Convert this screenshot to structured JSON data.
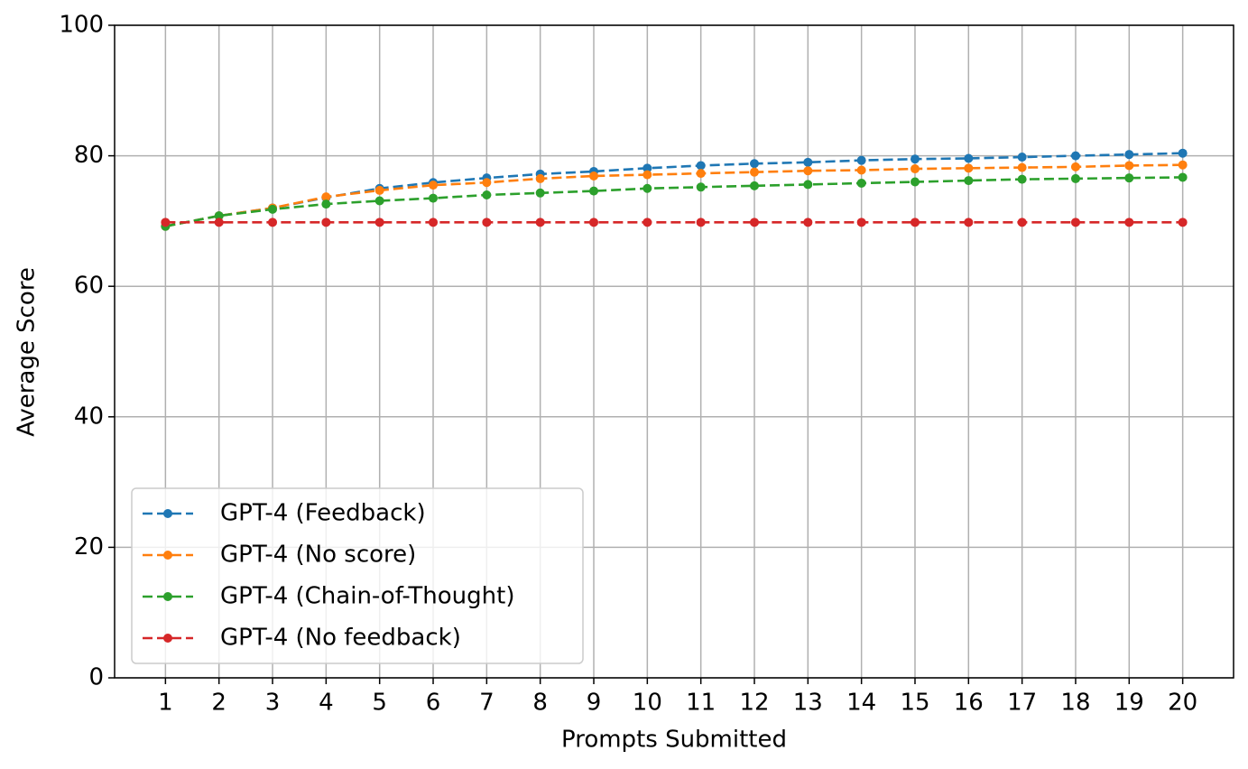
{
  "chart_data": {
    "type": "line",
    "xlabel": "Prompts Submitted",
    "ylabel": "Average Score",
    "x": [
      1,
      2,
      3,
      4,
      5,
      6,
      7,
      8,
      9,
      10,
      11,
      12,
      13,
      14,
      15,
      16,
      17,
      18,
      19,
      20
    ],
    "series": [
      {
        "name": "GPT-4 (Feedback)",
        "color": "#1f77b4",
        "values": [
          69.2,
          70.8,
          72.0,
          73.6,
          75.0,
          75.9,
          76.6,
          77.2,
          77.6,
          78.1,
          78.5,
          78.8,
          79.0,
          79.3,
          79.5,
          79.6,
          79.8,
          80.0,
          80.2,
          80.4
        ]
      },
      {
        "name": "GPT-4 (No score)",
        "color": "#ff7f0e",
        "values": [
          69.2,
          70.8,
          72.0,
          73.7,
          74.7,
          75.5,
          75.9,
          76.5,
          76.9,
          77.1,
          77.3,
          77.5,
          77.7,
          77.8,
          78.0,
          78.1,
          78.2,
          78.3,
          78.5,
          78.6
        ]
      },
      {
        "name": "GPT-4 (Chain-of-Thought)",
        "color": "#2ca02c",
        "values": [
          69.2,
          70.8,
          71.8,
          72.6,
          73.1,
          73.5,
          74.0,
          74.3,
          74.6,
          75.0,
          75.2,
          75.4,
          75.6,
          75.8,
          76.0,
          76.2,
          76.4,
          76.5,
          76.6,
          76.7
        ]
      },
      {
        "name": "GPT-4 (No feedback)",
        "color": "#d62728",
        "values": [
          69.8,
          69.8,
          69.8,
          69.8,
          69.8,
          69.8,
          69.8,
          69.8,
          69.8,
          69.8,
          69.8,
          69.8,
          69.8,
          69.8,
          69.8,
          69.8,
          69.8,
          69.8,
          69.8,
          69.8
        ]
      }
    ],
    "xlim": [
      0.05,
      20.95
    ],
    "ylim": [
      0,
      100
    ],
    "xticks": [
      1,
      2,
      3,
      4,
      5,
      6,
      7,
      8,
      9,
      10,
      11,
      12,
      13,
      14,
      15,
      16,
      17,
      18,
      19,
      20
    ],
    "yticks": [
      0,
      20,
      40,
      60,
      80,
      100
    ],
    "grid": true,
    "legend": "lower left",
    "linestyle": "dashed"
  }
}
